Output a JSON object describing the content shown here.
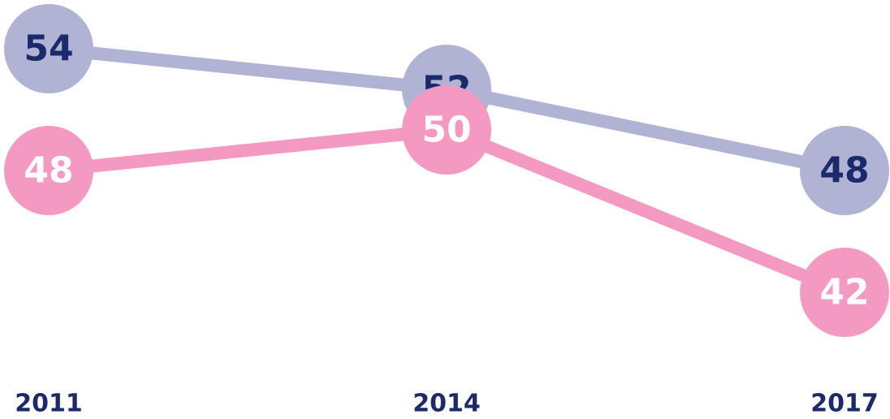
{
  "chart_data": {
    "type": "line",
    "categories": [
      "2011",
      "2014",
      "2017"
    ],
    "series": [
      {
        "color": "#b0b3d3",
        "values": [
          54,
          52,
          48
        ]
      },
      {
        "color": "#f49ac2",
        "values": [
          48,
          50,
          42
        ]
      }
    ]
  }
}
